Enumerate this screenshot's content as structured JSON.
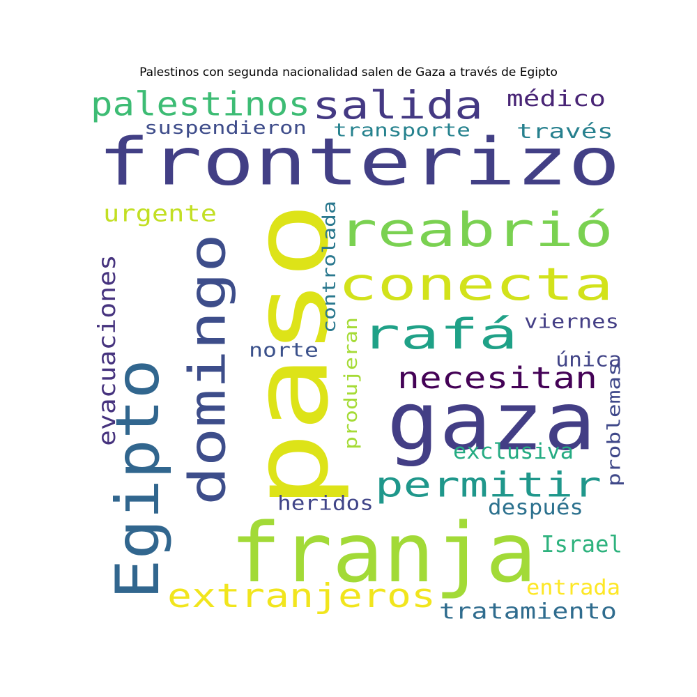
{
  "chart_data": {
    "type": "wordcloud",
    "title": "Palestinos con segunda nacionalidad salen de Gaza a través de Egipto",
    "words": [
      {
        "text": "fronterizo",
        "color": "#423f85"
      },
      {
        "text": "paso",
        "color": "#dde318"
      },
      {
        "text": "gaza",
        "color": "#433e85"
      },
      {
        "text": "franja",
        "color": "#a2da37"
      },
      {
        "text": "Egipto",
        "color": "#31668e"
      },
      {
        "text": "domingo",
        "color": "#3d4d8a"
      },
      {
        "text": "reabrió",
        "color": "#7ad151"
      },
      {
        "text": "conecta",
        "color": "#d2e21b"
      },
      {
        "text": "salida",
        "color": "#443983"
      },
      {
        "text": "palestinos",
        "color": "#3dbc74"
      },
      {
        "text": "rafá",
        "color": "#1fa187"
      },
      {
        "text": "permitir",
        "color": "#1f978b"
      },
      {
        "text": "extranjeros",
        "color": "#f1e51d"
      },
      {
        "text": "necesitan",
        "color": "#440256"
      },
      {
        "text": "evacuaciones",
        "color": "#46337e"
      },
      {
        "text": "médico",
        "color": "#482475"
      },
      {
        "text": "suspendieron",
        "color": "#3e4c8a"
      },
      {
        "text": "transporte",
        "color": "#26828e"
      },
      {
        "text": "través",
        "color": "#27808e"
      },
      {
        "text": "urgente",
        "color": "#c2df23"
      },
      {
        "text": "controlada",
        "color": "#2a788e"
      },
      {
        "text": "viernes",
        "color": "#433e85"
      },
      {
        "text": "norte",
        "color": "#3b518b"
      },
      {
        "text": "única",
        "color": "#414487"
      },
      {
        "text": "produjeran",
        "color": "#a5db36"
      },
      {
        "text": "problemas",
        "color": "#3f4889"
      },
      {
        "text": "exclusiva",
        "color": "#25ab82"
      },
      {
        "text": "heridos",
        "color": "#404588"
      },
      {
        "text": "después",
        "color": "#2c718e"
      },
      {
        "text": "Israel",
        "color": "#2db27d"
      },
      {
        "text": "entrada",
        "color": "#fde725"
      },
      {
        "text": "tratamiento",
        "color": "#2f6c8e"
      }
    ]
  }
}
